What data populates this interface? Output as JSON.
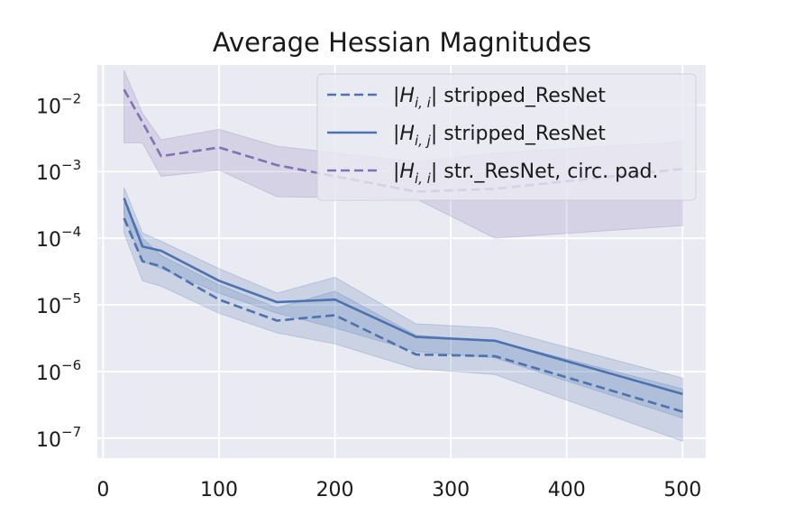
{
  "chart_data": {
    "type": "line",
    "title": "Average Hessian Magnitudes",
    "xlabel": "",
    "ylabel": "",
    "xlim": [
      -5,
      520
    ],
    "ylim_log10": [
      -7.3,
      -1.4
    ],
    "yscale": "log",
    "grid": true,
    "xticks": [
      {
        "value": 0,
        "label": "0"
      },
      {
        "value": 100,
        "label": "100"
      },
      {
        "value": 200,
        "label": "200"
      },
      {
        "value": 300,
        "label": "300"
      },
      {
        "value": 400,
        "label": "400"
      },
      {
        "value": 500,
        "label": "500"
      }
    ],
    "yticks": [
      {
        "exp": -2,
        "base": "10",
        "sup": "−2"
      },
      {
        "exp": -3,
        "base": "10",
        "sup": "−3"
      },
      {
        "exp": -4,
        "base": "10",
        "sup": "−4"
      },
      {
        "exp": -5,
        "base": "10",
        "sup": "−5"
      },
      {
        "exp": -6,
        "base": "10",
        "sup": "−6"
      },
      {
        "exp": -7,
        "base": "10",
        "sup": "−7"
      }
    ],
    "legend_position": "upper-right",
    "series": [
      {
        "name": "|H_{i,i}| stripped_ResNet",
        "legend_label": {
          "pre": "|",
          "H": "H",
          "sub": "i, i",
          "post": "| stripped_ResNet"
        },
        "color": "#4c72b0",
        "style": "dashed",
        "x": [
          18,
          34,
          50,
          100,
          150,
          200,
          270,
          338,
          500
        ],
        "y": [
          0.0002,
          4.5e-05,
          3.8e-05,
          1.2e-05,
          5.8e-06,
          7e-06,
          1.8e-06,
          1.7e-06,
          2.5e-07
        ],
        "band_upper": [
          0.00035,
          0.0001,
          5.5e-05,
          2e-05,
          9e-06,
          1.6e-05,
          3.5e-06,
          2.9e-06,
          5.5e-07
        ],
        "band_lower": [
          0.00012,
          2.3e-05,
          1.9e-05,
          7.5e-06,
          3.8e-06,
          2.6e-06,
          1.1e-06,
          9e-07,
          9e-08
        ]
      },
      {
        "name": "|H_{i,j}| stripped_ResNet",
        "legend_label": {
          "pre": "|",
          "H": "H",
          "sub": "i, j",
          "post": "| stripped_ResNet"
        },
        "color": "#4c72b0",
        "style": "solid",
        "x": [
          18,
          34,
          50,
          100,
          150,
          200,
          270,
          338,
          500
        ],
        "y": [
          0.0004,
          7.5e-05,
          6.5e-05,
          2.3e-05,
          1.1e-05,
          1.2e-05,
          3.3e-06,
          2.9e-06,
          4.6e-07
        ],
        "band_upper": [
          0.00058,
          0.00012,
          9e-05,
          3.5e-05,
          1.5e-05,
          2.6e-05,
          5.2e-06,
          4.5e-06,
          8e-07
        ],
        "band_lower": [
          0.00023,
          4.5e-05,
          3.5e-05,
          1.5e-05,
          7.5e-06,
          4.5e-06,
          2e-06,
          1.6e-06,
          2e-07
        ]
      },
      {
        "name": "|H_{i,i}| str._ResNet, circ. pad.",
        "legend_label": {
          "pre": "|",
          "H": "H",
          "sub": "i, i",
          "post": "| str._ResNet, circ. pad."
        },
        "color": "#8172b2",
        "style": "dashed",
        "x": [
          18,
          34,
          50,
          100,
          150,
          270,
          338,
          500
        ],
        "y": [
          0.017,
          0.0055,
          0.0017,
          0.0023,
          0.00125,
          0.0005,
          0.00055,
          0.0011
        ],
        "band_upper": [
          0.033,
          0.0075,
          0.003,
          0.0043,
          0.0024,
          0.0014,
          0.0019,
          0.0028
        ],
        "band_lower": [
          0.0027,
          0.0027,
          0.00085,
          0.00105,
          0.00042,
          0.00039,
          0.0001,
          0.000155
        ]
      }
    ]
  }
}
